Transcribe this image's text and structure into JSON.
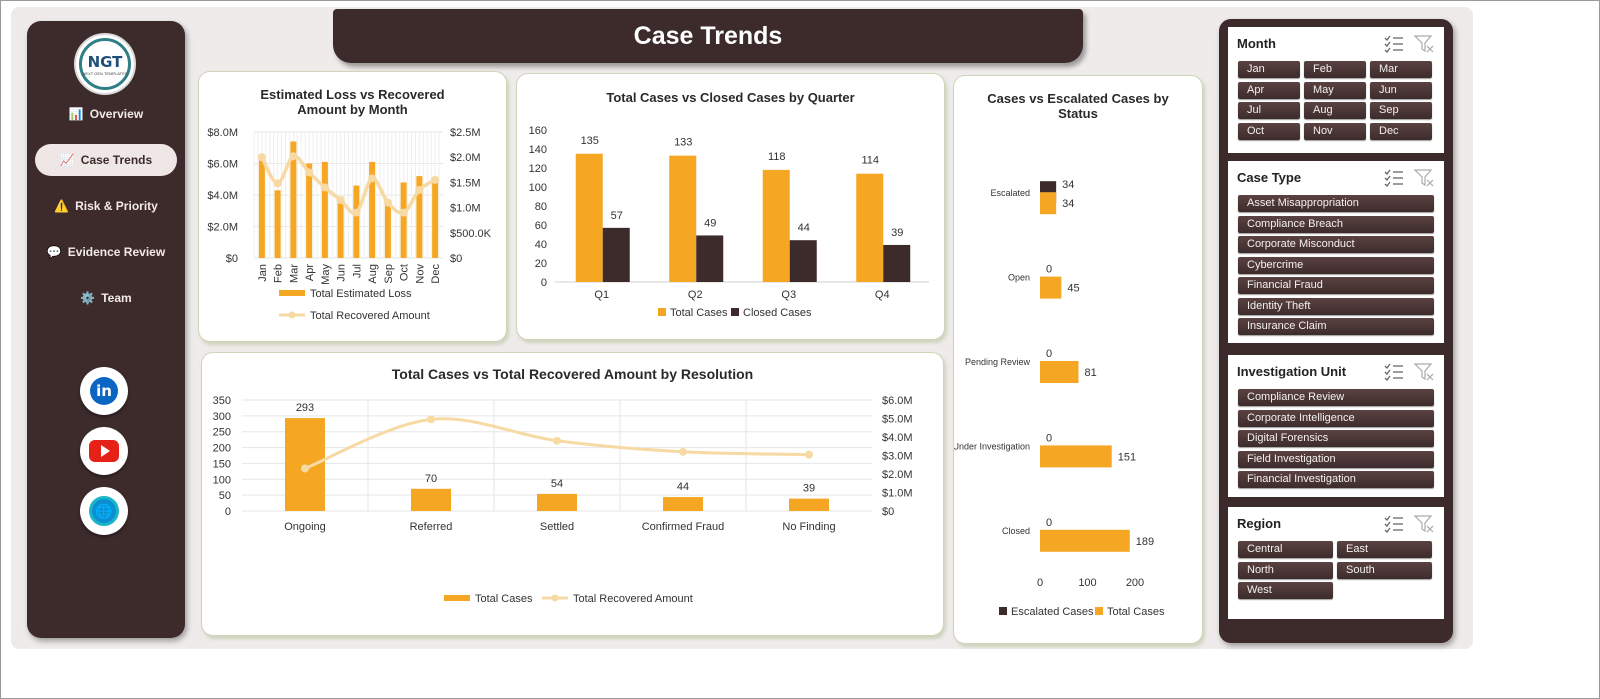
{
  "title": "Case Trends",
  "logo": {
    "brand": "NGT",
    "tagline": "NEXT GEN TEMPLATES"
  },
  "nav": [
    {
      "label": "Overview",
      "icon": "bar-chart-icon",
      "active": false
    },
    {
      "label": "Case Trends",
      "icon": "trend-chart-icon",
      "active": true
    },
    {
      "label": "Risk & Priority",
      "icon": "warning-icon",
      "active": false
    },
    {
      "label": "Evidence Review",
      "icon": "speech-bubble-icon",
      "active": false
    },
    {
      "label": "Team",
      "icon": "gear-icon",
      "active": false
    }
  ],
  "social": [
    "linkedin-icon",
    "youtube-icon",
    "globe-icon"
  ],
  "colors": {
    "orange": "#F5A623",
    "dark": "#3D2B2B",
    "line": "#F7D9A3"
  },
  "chart_data": [
    {
      "id": "loss_vs_recovered",
      "type": "bar",
      "title": "Estimated Loss vs Recovered Amount by Month",
      "categories": [
        "Jan",
        "Feb",
        "Mar",
        "Apr",
        "May",
        "Jun",
        "Jul",
        "Aug",
        "Sep",
        "Oct",
        "Nov",
        "Dec"
      ],
      "series": [
        {
          "name": "Total Estimated Loss",
          "type": "bar",
          "axis": "left",
          "values": [
            6.2,
            4.3,
            7.4,
            6.0,
            6.1,
            3.9,
            4.6,
            6.1,
            3.6,
            4.8,
            5.2,
            4.9
          ]
        },
        {
          "name": "Total Recovered Amount",
          "type": "line",
          "axis": "right",
          "values": [
            2.0,
            1.48,
            2.02,
            1.7,
            1.4,
            1.15,
            0.9,
            1.58,
            1.1,
            0.9,
            1.35,
            1.55
          ]
        }
      ],
      "y_left": {
        "ticks": [
          "$0",
          "$2.0M",
          "$4.0M",
          "$6.0M",
          "$8.0M"
        ],
        "range": [
          0,
          8
        ]
      },
      "y_right": {
        "ticks": [
          "$0",
          "$500.0K",
          "$1.0M",
          "$1.5M",
          "$2.0M",
          "$2.5M"
        ],
        "range": [
          0,
          2.5
        ]
      },
      "legend": "bottom"
    },
    {
      "id": "total_vs_closed",
      "type": "bar",
      "title": "Total Cases vs Closed Cases by Quarter",
      "categories": [
        "Q1",
        "Q2",
        "Q3",
        "Q4"
      ],
      "series": [
        {
          "name": "Total Cases",
          "values": [
            135,
            133,
            118,
            114
          ]
        },
        {
          "name": "Closed Cases",
          "values": [
            57,
            49,
            44,
            39
          ]
        }
      ],
      "y_ticks": [
        "0",
        "20",
        "40",
        "60",
        "80",
        "100",
        "120",
        "140",
        "160"
      ],
      "ylim": [
        0,
        160
      ],
      "legend": "bottom"
    },
    {
      "id": "escalated_by_status",
      "type": "bar",
      "orientation": "horizontal",
      "title": "Cases vs Escalated Cases by Status",
      "categories": [
        "Escalated",
        "Open",
        "Pending Review",
        "Under Investigation",
        "Closed"
      ],
      "series": [
        {
          "name": "Escalated Cases",
          "values": [
            34,
            0,
            0,
            0,
            0
          ]
        },
        {
          "name": "Total Cases",
          "values": [
            34,
            45,
            81,
            151,
            189
          ]
        }
      ],
      "x_ticks": [
        "0",
        "100",
        "200"
      ],
      "xlim": [
        0,
        200
      ],
      "legend": "bottom"
    },
    {
      "id": "cases_vs_recovered_resolution",
      "type": "bar",
      "title": "Total Cases vs Total Recovered Amount by Resolution",
      "categories": [
        "Ongoing",
        "Referred",
        "Settled",
        "Confirmed Fraud",
        "No Finding"
      ],
      "series": [
        {
          "name": "Total Cases",
          "type": "bar",
          "axis": "left",
          "values": [
            293,
            70,
            54,
            44,
            39
          ]
        },
        {
          "name": "Total Recovered Amount",
          "type": "line",
          "axis": "right",
          "values": [
            2.3,
            4.95,
            3.8,
            3.2,
            3.05
          ]
        }
      ],
      "y_left": {
        "ticks": [
          "0",
          "50",
          "100",
          "150",
          "200",
          "250",
          "300",
          "350"
        ],
        "range": [
          0,
          350
        ]
      },
      "y_right": {
        "ticks": [
          "$0",
          "$1.0M",
          "$2.0M",
          "$3.0M",
          "$4.0M",
          "$5.0M",
          "$6.0M"
        ],
        "range": [
          0,
          6
        ]
      },
      "legend": "bottom"
    }
  ],
  "slicers": [
    {
      "title": "Month",
      "items": [
        "Jan",
        "Feb",
        "Mar",
        "Apr",
        "May",
        "Jun",
        "Jul",
        "Aug",
        "Sep",
        "Oct",
        "Nov",
        "Dec"
      ],
      "columns": 3
    },
    {
      "title": "Case Type",
      "items": [
        "Asset Misappropriation",
        "Compliance Breach",
        "Corporate Misconduct",
        "Cybercrime",
        "Financial Fraud",
        "Identity Theft",
        "Insurance Claim"
      ],
      "columns": 1
    },
    {
      "title": "Investigation Unit",
      "items": [
        "Compliance Review",
        "Corporate Intelligence",
        "Digital Forensics",
        "Field Investigation",
        "Financial Investigation"
      ],
      "columns": 1
    },
    {
      "title": "Region",
      "items": [
        "Central",
        "East",
        "North",
        "South",
        "West"
      ],
      "columns": 2
    }
  ]
}
